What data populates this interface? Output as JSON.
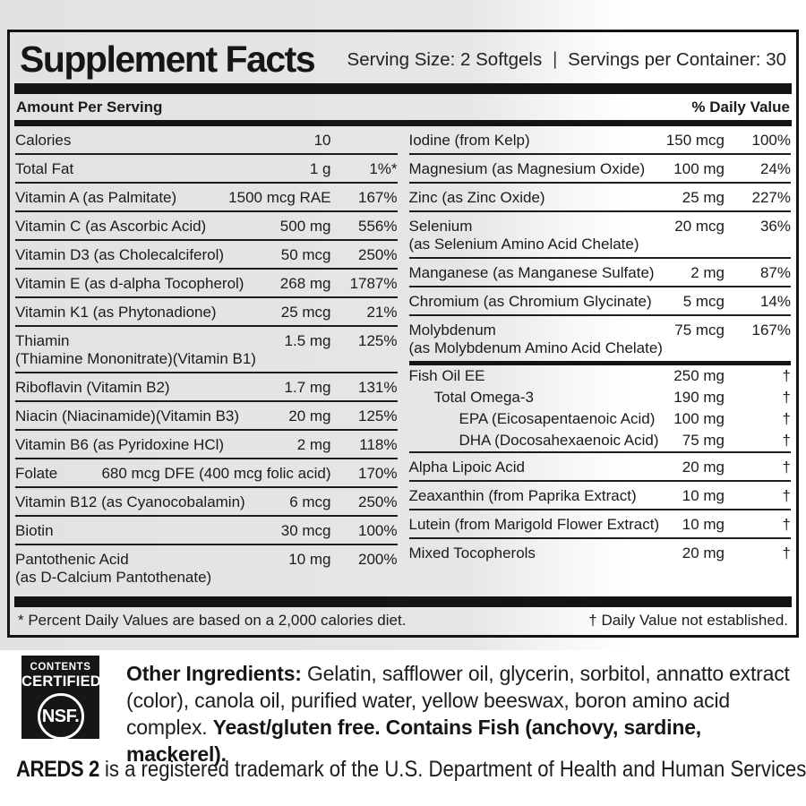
{
  "panel": {
    "title": "Supplement Facts",
    "serving_size": "Serving Size: 2 Softgels",
    "serving_separator": "|",
    "servings_per_container": "Servings per Container: 30",
    "amount_header": "Amount Per Serving",
    "dv_header": "% Daily Value",
    "footnote_left": "* Percent Daily Values are based on a 2,000 calories diet.",
    "footnote_right": "† Daily Value not established."
  },
  "columns": {
    "left": [
      {
        "name": "Calories",
        "amount": "10",
        "dv": ""
      },
      {
        "name": "Total Fat",
        "amount": "1 g",
        "dv": "1%*"
      },
      {
        "name": "Vitamin A (as Palmitate)",
        "amount": "1500 mcg RAE",
        "dv": "167%"
      },
      {
        "name": "Vitamin C (as Ascorbic Acid)",
        "amount": "500 mg",
        "dv": "556%"
      },
      {
        "name": "Vitamin D3 (as Cholecalciferol)",
        "amount": "50 mcg",
        "dv": "250%"
      },
      {
        "name": "Vitamin E (as d-alpha Tocopherol)",
        "amount": "268 mg",
        "dv": "1787%"
      },
      {
        "name": "Vitamin K1 (as Phytonadione)",
        "amount": "25 mcg",
        "dv": "21%"
      },
      {
        "name": "Thiamin",
        "name2": "(Thiamine Mononitrate)(Vitamin B1)",
        "amount": "1.5 mg",
        "dv": "125%"
      },
      {
        "name": "Riboflavin (Vitamin B2)",
        "amount": "1.7 mg",
        "dv": "131%"
      },
      {
        "name": "Niacin (Niacinamide)(Vitamin B3)",
        "amount": "20 mg",
        "dv": "125%"
      },
      {
        "name": "Vitamin B6 (as Pyridoxine HCl)",
        "amount": "2 mg",
        "dv": "118%"
      },
      {
        "name": "Folate",
        "amount": "680 mcg DFE (400 mcg folic acid)",
        "dv": "170%"
      },
      {
        "name": "Vitamin B12 (as Cyanocobalamin)",
        "amount": "6 mcg",
        "dv": "250%"
      },
      {
        "name": "Biotin",
        "amount": "30 mcg",
        "dv": "100%"
      },
      {
        "name": "Pantothenic Acid",
        "name2": "(as D-Calcium Pantothenate)",
        "amount": "10 mg",
        "dv": "200%",
        "sep": "none"
      }
    ],
    "right": [
      {
        "name": "Iodine (from Kelp)",
        "amount": "150 mcg",
        "dv": "100%"
      },
      {
        "name": "Magnesium (as Magnesium Oxide)",
        "amount": "100 mg",
        "dv": "24%"
      },
      {
        "name": "Zinc (as Zinc Oxide)",
        "amount": "25 mg",
        "dv": "227%"
      },
      {
        "name": "Selenium",
        "name2": "(as Selenium Amino Acid Chelate)",
        "amount": "20 mcg",
        "dv": "36%"
      },
      {
        "name": "Manganese (as Manganese Sulfate)",
        "amount": "2 mg",
        "dv": "87%"
      },
      {
        "name": "Chromium (as Chromium Glycinate)",
        "amount": "5 mcg",
        "dv": "14%"
      },
      {
        "name": "Molybdenum",
        "name2": "(as Molybdenum Amino Acid Chelate)",
        "amount": "75 mcg",
        "dv": "167%",
        "sep": "thick"
      },
      {
        "name": "Fish Oil EE",
        "amount": "250 mg",
        "dv": "†",
        "sep": "none",
        "compact": true,
        "indent": 0
      },
      {
        "name": "Total Omega-3",
        "amount": "190 mg",
        "dv": "†",
        "sep": "none",
        "compact": true,
        "indent": 1
      },
      {
        "name": "EPA (Eicosapentaenoic Acid)",
        "amount": "100 mg",
        "dv": "†",
        "sep": "none",
        "compact": true,
        "indent": 2
      },
      {
        "name": "DHA (Docosahexaenoic Acid)",
        "amount": "75 mg",
        "dv": "†",
        "compact": true,
        "indent": 2
      },
      {
        "name": "Alpha Lipoic Acid",
        "amount": "20 mg",
        "dv": "†"
      },
      {
        "name": "Zeaxanthin (from Paprika Extract)",
        "amount": "10 mg",
        "dv": "†"
      },
      {
        "name": "Lutein (from Marigold Flower Extract)",
        "amount": "10 mg",
        "dv": "†"
      },
      {
        "name": "Mixed Tocopherols",
        "amount": "20 mg",
        "dv": "†",
        "sep": "none"
      }
    ]
  },
  "nsf": {
    "line1": "CONTENTS",
    "line2": "CERTIFIED",
    "mark": "NSF."
  },
  "other_ingredients": {
    "label": "Other Ingredients:",
    "text": " Gelatin, safflower oil, glycerin, sorbitol, annatto extract (color), canola oil, purified water, yellow beeswax, boron amino acid complex. ",
    "allergen_note": "Yeast/gluten free. Contains Fish (anchovy, sardine, mackerel)."
  },
  "trademark": {
    "brand": "AREDS 2",
    "text": " is a registered trademark of the U.S. Department of Health and Human Services."
  },
  "colors": {
    "label_text": "#1b1b1b",
    "bar": "#141414",
    "background_gray": "#e4e4e4",
    "background_white": "#ffffff"
  }
}
